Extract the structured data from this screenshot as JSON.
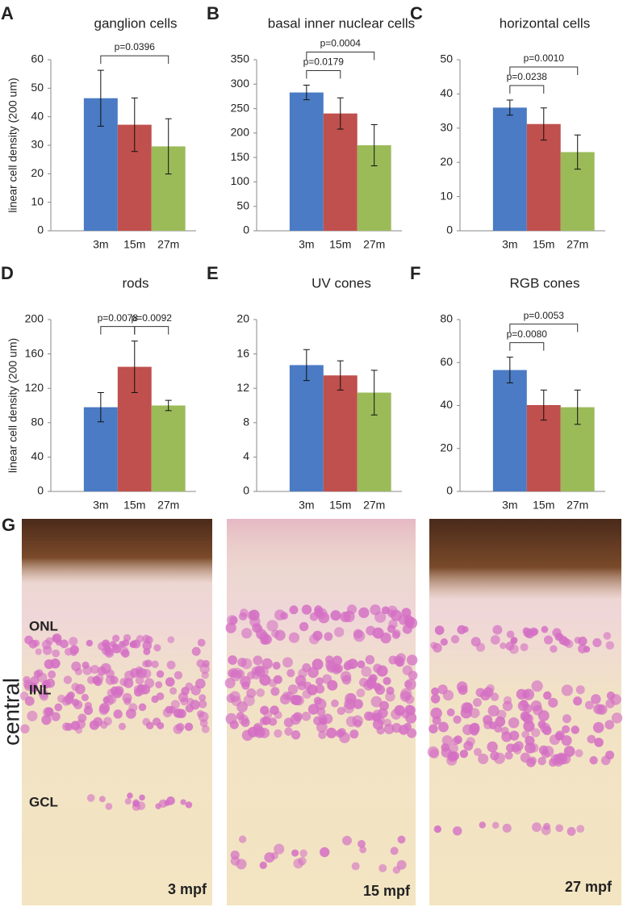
{
  "chart_data": [
    {
      "type": "bar",
      "panel_label": "A",
      "title": "ganglion cells",
      "y_label": "linear cell density (200 um)",
      "categories": [
        "3m",
        "15m",
        "27m"
      ],
      "values": [
        46.5,
        37.2,
        29.6
      ],
      "errors": [
        9.8,
        9.4,
        9.7
      ],
      "colors": [
        "#4a7bc4",
        "#c0504d",
        "#9bbb59"
      ],
      "ylim": [
        0,
        60
      ],
      "yticks": [
        0,
        10,
        20,
        30,
        40,
        50,
        60
      ],
      "brackets": [
        {
          "between": [
            "3m",
            "27m"
          ],
          "label": "p=0.0396"
        }
      ]
    },
    {
      "type": "bar",
      "panel_label": "B",
      "title": "basal inner nuclear cells",
      "categories": [
        "3m",
        "15m",
        "27m"
      ],
      "values": [
        283,
        240,
        175
      ],
      "errors": [
        15,
        32,
        42
      ],
      "colors": [
        "#4a7bc4",
        "#c0504d",
        "#9bbb59"
      ],
      "ylim": [
        0,
        350
      ],
      "yticks": [
        0,
        50,
        100,
        150,
        200,
        250,
        300,
        350
      ],
      "brackets": [
        {
          "between": [
            "3m",
            "15m"
          ],
          "label": "p=0.0179"
        },
        {
          "between": [
            "3m",
            "27m"
          ],
          "label": "p=0.0004"
        }
      ]
    },
    {
      "type": "bar",
      "panel_label": "C",
      "title": "horizontal cells",
      "categories": [
        "3m",
        "15m",
        "27m"
      ],
      "values": [
        36,
        31.2,
        23
      ],
      "errors": [
        2.2,
        4.7,
        5
      ],
      "colors": [
        "#4a7bc4",
        "#c0504d",
        "#9bbb59"
      ],
      "ylim": [
        0,
        50
      ],
      "yticks": [
        0,
        10,
        20,
        30,
        40,
        50
      ],
      "brackets": [
        {
          "between": [
            "3m",
            "15m"
          ],
          "label": "p=0.0238"
        },
        {
          "between": [
            "3m",
            "27m"
          ],
          "label": "p=0.0010"
        }
      ]
    },
    {
      "type": "bar",
      "panel_label": "D",
      "title": "rods",
      "y_label": "linear cell density (200 um)",
      "categories": [
        "3m",
        "15m",
        "27m"
      ],
      "values": [
        98,
        145,
        100
      ],
      "errors": [
        17,
        30,
        6
      ],
      "colors": [
        "#4a7bc4",
        "#c0504d",
        "#9bbb59"
      ],
      "ylim": [
        0,
        200
      ],
      "yticks": [
        0,
        40,
        80,
        120,
        160,
        200
      ],
      "brackets": [
        {
          "between": [
            "3m",
            "15m"
          ],
          "label": "p=0.0078"
        },
        {
          "between": [
            "15m",
            "27m"
          ],
          "label": "p=0.0092"
        }
      ]
    },
    {
      "type": "bar",
      "panel_label": "E",
      "title": "UV cones",
      "categories": [
        "3m",
        "15m",
        "27m"
      ],
      "values": [
        14.7,
        13.5,
        11.5
      ],
      "errors": [
        1.8,
        1.7,
        2.6
      ],
      "colors": [
        "#4a7bc4",
        "#c0504d",
        "#9bbb59"
      ],
      "ylim": [
        0,
        20
      ],
      "yticks": [
        0,
        4,
        8,
        12,
        16,
        20
      ],
      "brackets": []
    },
    {
      "type": "bar",
      "panel_label": "F",
      "title": "RGB cones",
      "categories": [
        "3m",
        "15m",
        "27m"
      ],
      "values": [
        56.5,
        40.2,
        39.2
      ],
      "errors": [
        6,
        7,
        8
      ],
      "colors": [
        "#4a7bc4",
        "#c0504d",
        "#9bbb59"
      ],
      "ylim": [
        0,
        80
      ],
      "yticks": [
        0,
        20,
        40,
        60,
        80
      ],
      "brackets": [
        {
          "between": [
            "3m",
            "15m"
          ],
          "label": "p=0.0080"
        },
        {
          "between": [
            "3m",
            "27m"
          ],
          "label": "p=0.0053"
        }
      ]
    }
  ],
  "histology": {
    "panel_label": "G",
    "region": "central",
    "layers": [
      "ONL",
      "INL",
      "GCL"
    ],
    "ages": [
      "3 mpf",
      "15 mpf",
      "27 mpf"
    ]
  }
}
